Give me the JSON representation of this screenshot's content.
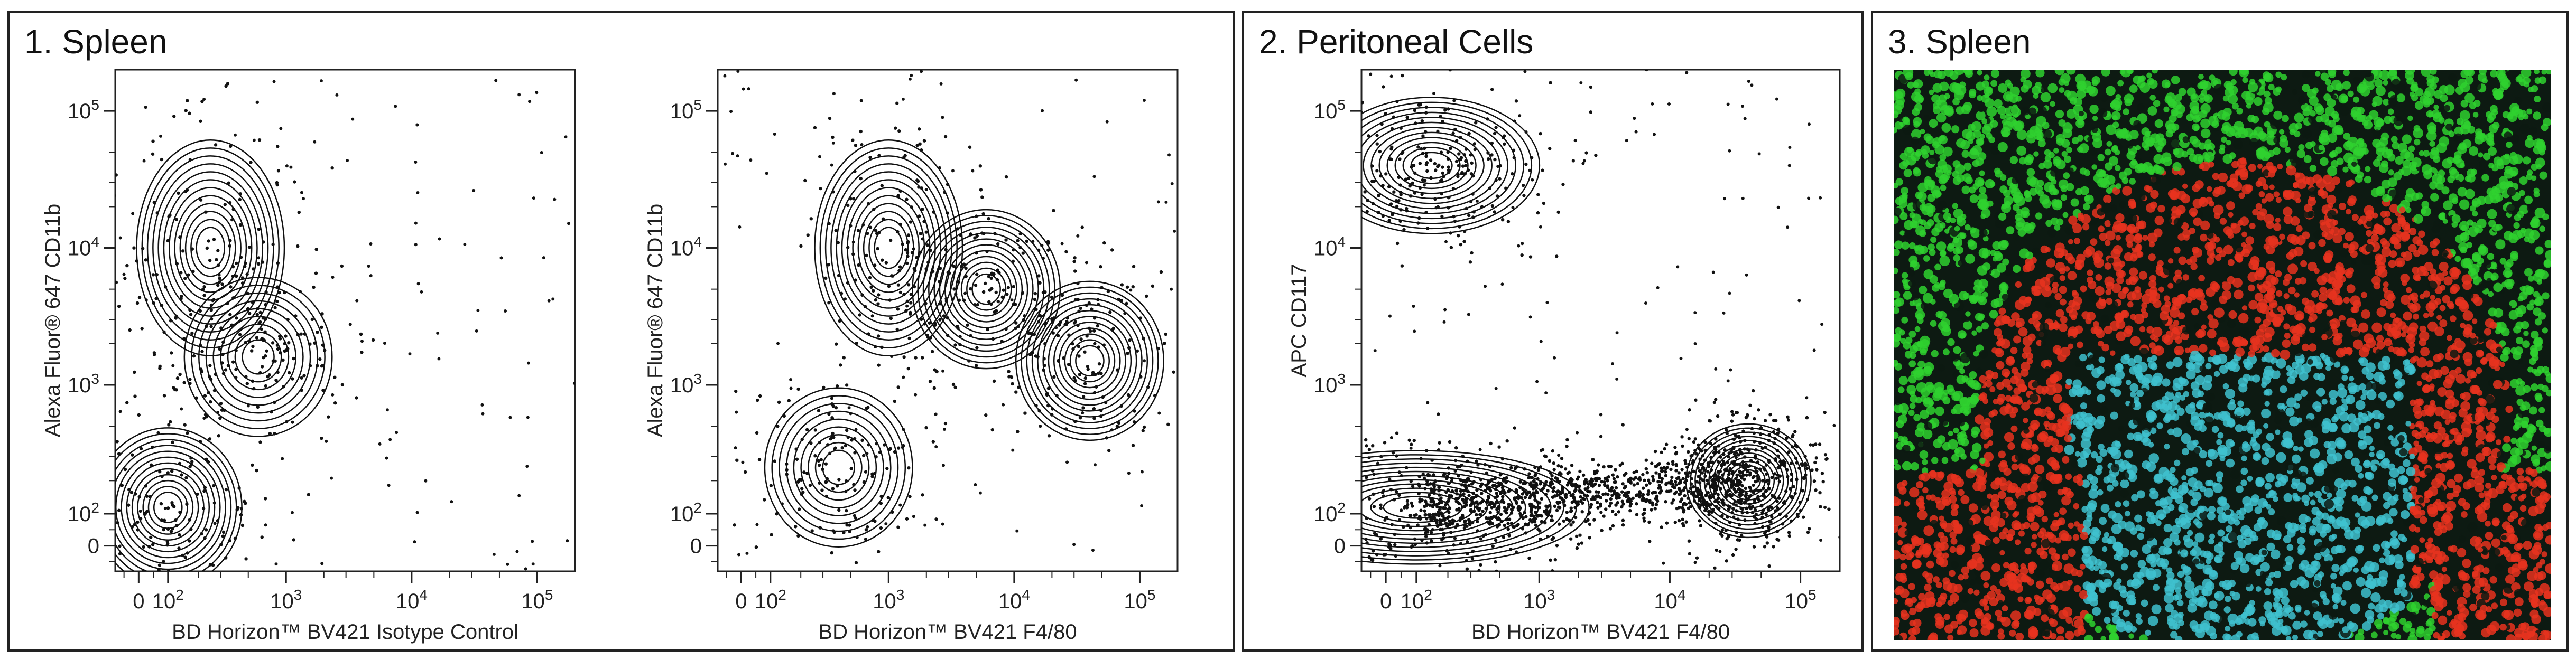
{
  "panels": [
    {
      "title": "1. Spleen"
    },
    {
      "title": "2. Peritoneal Cells"
    },
    {
      "title": "3. Spleen"
    }
  ],
  "chart_data": [
    {
      "type": "scatter",
      "subtype": "contour",
      "panel": "1. Spleen",
      "xlabel": "BD Horizon™ BV421 Isotype Control",
      "ylabel": "Alexa Fluor® 647 CD11b",
      "x_scale": "biexponential",
      "y_scale": "biexponential",
      "x_ticks": [
        "0",
        "10^2",
        "10^3",
        "10^4",
        "10^5"
      ],
      "y_ticks": [
        "0",
        "10^2",
        "10^3",
        "10^4",
        "10^5"
      ],
      "populations": [
        {
          "x": 250,
          "y": 10000
        },
        {
          "x": 100,
          "y": 120
        },
        {
          "x": 600,
          "y": 1600
        }
      ]
    },
    {
      "type": "scatter",
      "subtype": "contour",
      "panel": "1. Spleen",
      "xlabel": "BD Horizon™ BV421 F4/80",
      "ylabel": "Alexa Fluor® 647 CD11b",
      "x_scale": "biexponential",
      "y_scale": "biexponential",
      "x_ticks": [
        "0",
        "10^2",
        "10^3",
        "10^4",
        "10^5"
      ],
      "y_ticks": [
        "0",
        "10^2",
        "10^3",
        "10^4",
        "10^5"
      ],
      "populations": [
        {
          "x": 1000,
          "y": 10000
        },
        {
          "x": 6000,
          "y": 5000
        },
        {
          "x": 40000,
          "y": 1500
        },
        {
          "x": 400,
          "y": 250
        }
      ]
    },
    {
      "type": "scatter",
      "subtype": "contour",
      "panel": "2. Peritoneal Cells",
      "xlabel": "BD Horizon™ BV421 F4/80",
      "ylabel": "APC CD117",
      "x_scale": "biexponential",
      "y_scale": "biexponential",
      "x_ticks": [
        "0",
        "10^2",
        "10^3",
        "10^4",
        "10^5"
      ],
      "y_ticks": [
        "0",
        "10^2",
        "10^3",
        "10^4",
        "10^5"
      ],
      "populations": [
        {
          "x": 100,
          "y": 120
        },
        {
          "x": 40000,
          "y": 200
        },
        {
          "x": 150,
          "y": 40000
        }
      ]
    }
  ],
  "image": {
    "colors": {
      "green": "#2fd12f",
      "red": "#e8321e",
      "cyan": "#3fc2cf",
      "background": "#0d1a12"
    }
  }
}
